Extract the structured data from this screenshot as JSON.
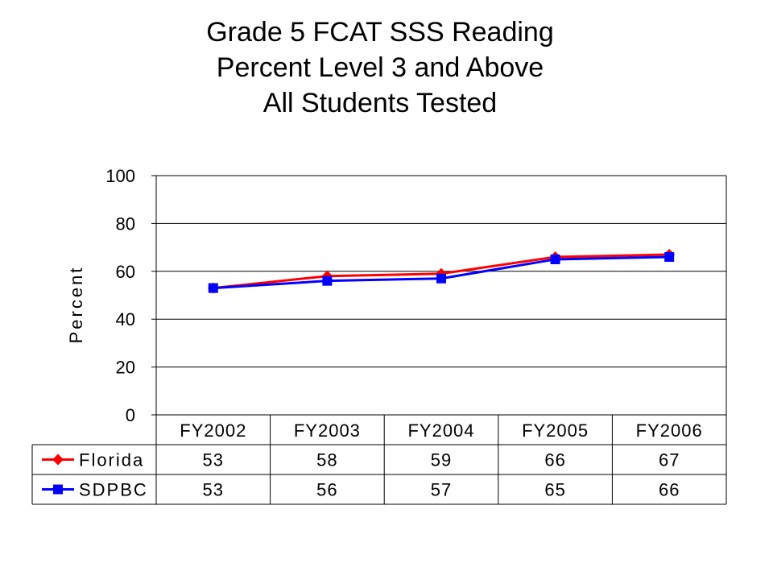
{
  "chart_data": {
    "type": "line",
    "title": [
      "Grade 5 FCAT SSS Reading",
      "Percent Level 3 and Above",
      "All Students Tested"
    ],
    "xlabel": "",
    "ylabel": "Percent",
    "ylim": [
      0,
      100
    ],
    "yticks": [
      "0",
      "20",
      "40",
      "60",
      "80",
      "100"
    ],
    "categories": [
      "FY2002",
      "FY2003",
      "FY2004",
      "FY2005",
      "FY2006"
    ],
    "grid": true,
    "legend": "data-table",
    "series": [
      {
        "name": "Florida",
        "color": "#ff0000",
        "marker": "diamond",
        "values": [
          53,
          58,
          59,
          66,
          67
        ]
      },
      {
        "name": "SDPBC",
        "color": "#0000ff",
        "marker": "square",
        "values": [
          53,
          56,
          57,
          65,
          66
        ]
      }
    ]
  }
}
